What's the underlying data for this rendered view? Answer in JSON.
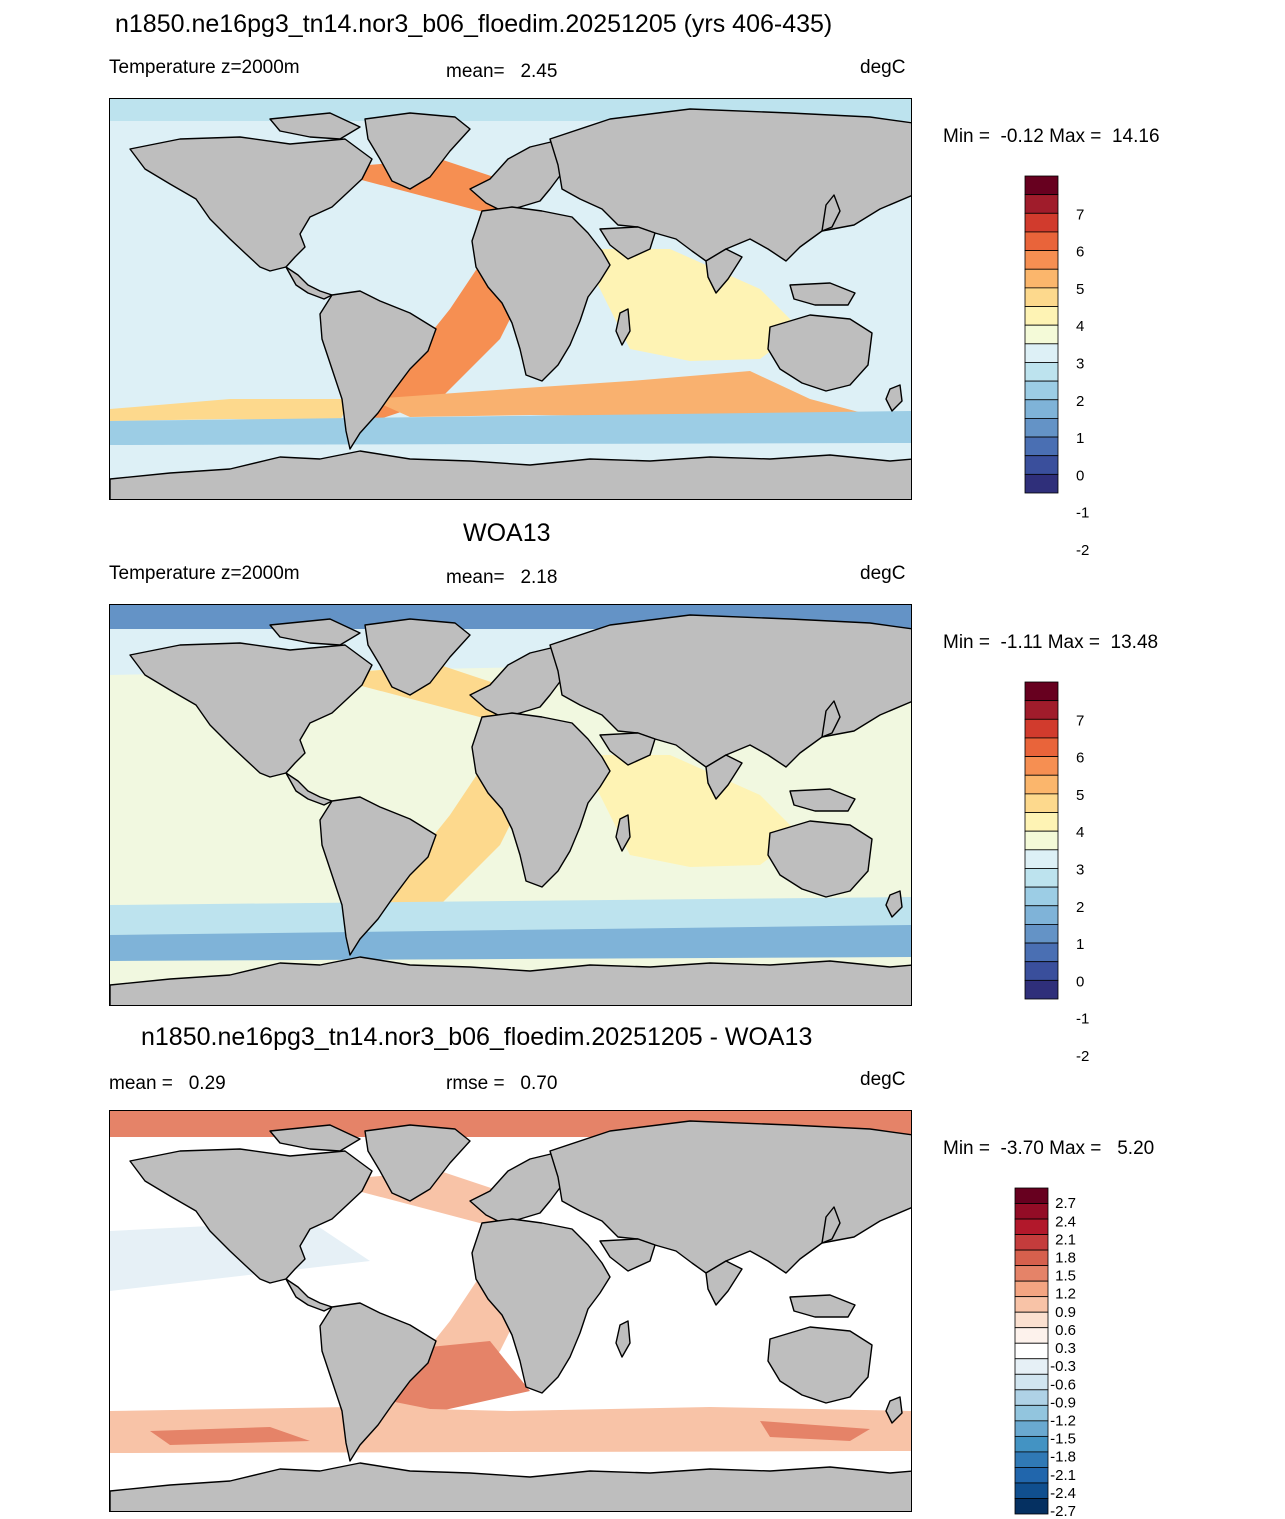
{
  "panels": [
    {
      "title": "n1850.ne16pg3_tn14.nor3_b06_floedim.20251205 (yrs 406-435)",
      "left_label": "Temperature z=2000m",
      "center_label": "mean=   2.45",
      "right_label": "degC",
      "minmax": "Min =  -0.12 Max =  14.16",
      "palette": "abs"
    },
    {
      "title": "WOA13",
      "left_label": "Temperature z=2000m",
      "center_label": "mean=   2.18",
      "right_label": "degC",
      "minmax": "Min =  -1.11 Max =  13.48",
      "palette": "abs"
    },
    {
      "title": "n1850.ne16pg3_tn14.nor3_b06_floedim.20251205 - WOA13",
      "left_label": "mean =   0.29",
      "center_label": "rmse =   0.70",
      "right_label": "degC",
      "minmax": "Min =  -3.70 Max =   5.20",
      "palette": "diff"
    }
  ],
  "colorbars": {
    "abs": {
      "labels": [
        "7",
        "6",
        "5",
        "4",
        "3",
        "2",
        "1",
        "0",
        "-1",
        "-2"
      ],
      "colors": [
        "#67001f",
        "#a01c2b",
        "#d13b2d",
        "#e9643a",
        "#f68f52",
        "#fbb66c",
        "#fdd98d",
        "#fef3b4",
        "#f4fad8",
        "#ddf0f6",
        "#bde3ee",
        "#9ccde5",
        "#7fb3d8",
        "#6493c6",
        "#4a6fb3",
        "#3a4f9c",
        "#2f2f7a"
      ]
    },
    "diff": {
      "labels": [
        "2.7",
        "2.4",
        "2.1",
        "1.8",
        "1.5",
        "1.2",
        "0.9",
        "0.6",
        "0.3",
        "-0.3",
        "-0.6",
        "-0.9",
        "-1.2",
        "-1.5",
        "-1.8",
        "-2.1",
        "-2.4",
        "-2.7"
      ],
      "colors": [
        "#67001f",
        "#930c26",
        "#b2182b",
        "#c43c3c",
        "#d6604d",
        "#e58368",
        "#f4a582",
        "#f8c3a7",
        "#fbe0d0",
        "#fdf2ec",
        "#ffffff",
        "#e6f0f6",
        "#d1e5f0",
        "#afd2e6",
        "#92c5de",
        "#6aa9d0",
        "#4393c3",
        "#3079b5",
        "#2166ac",
        "#104f8f",
        "#053061"
      ]
    }
  },
  "map_colors": {
    "land": "#bebebe",
    "coast": "#000000",
    "abs_pacific": "#ddf0f6",
    "abs_atlantic": "#f68f52",
    "abs_indian": "#fef3b4",
    "abs_south": "#9ccde5",
    "abs_arctic": "#bde3ee",
    "woa_pacific": "#f1f8e0",
    "woa_atlantic": "#fdd98d",
    "woa_south": "#7fb3d8",
    "woa_arctic": "#6493c6",
    "diff_pacific": "#ffffff",
    "diff_atlantic": "#f8c3a7",
    "diff_south": "#e58368",
    "diff_arctic": "#e58368"
  }
}
